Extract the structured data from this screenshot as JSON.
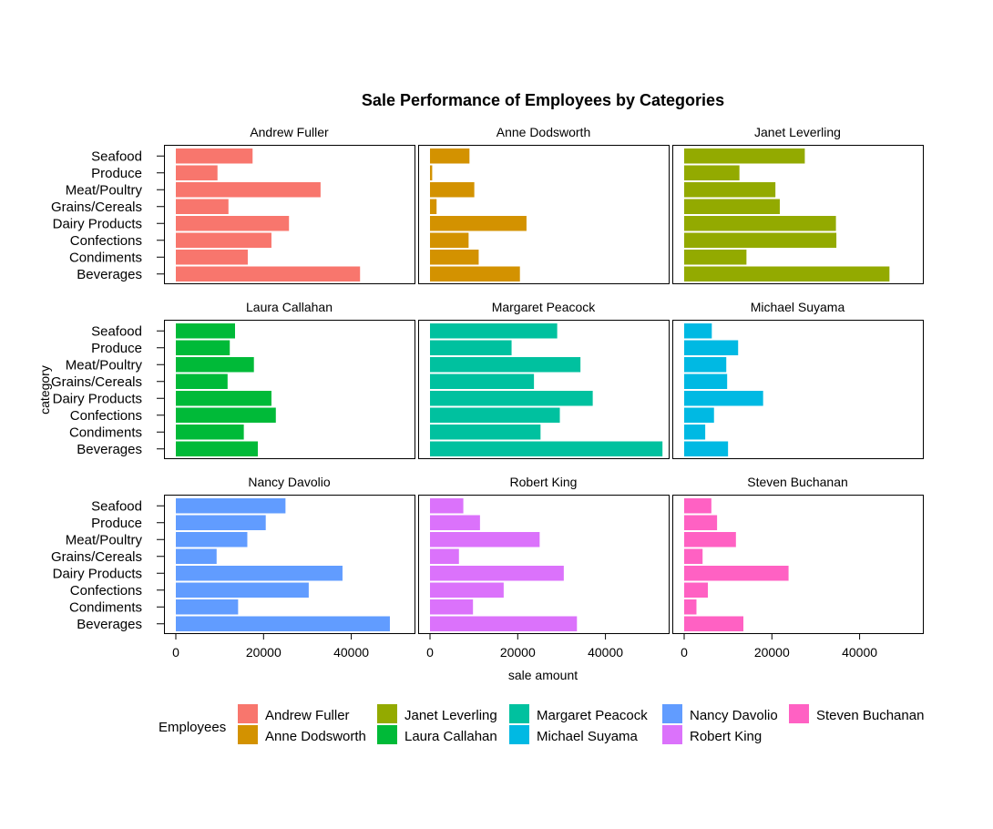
{
  "chart_data": {
    "type": "bar",
    "orientation": "horizontal",
    "layout": "faceted 3x3",
    "title": "Sale Performance of Employees by Categories",
    "xlabel": "sale amount",
    "ylabel": "category",
    "xlim": [
      0,
      54000
    ],
    "x_ticks": [
      0,
      20000,
      40000
    ],
    "x_tick_labels": [
      "0",
      "20000",
      "40000"
    ],
    "categories": [
      "Seafood",
      "Produce",
      "Meat/Poultry",
      "Grains/Cereals",
      "Dairy Products",
      "Confections",
      "Condiments",
      "Beverages"
    ],
    "grid": false,
    "legend": {
      "title": "Employees",
      "position": "bottom",
      "entries": [
        "Andrew Fuller",
        "Anne Dodsworth",
        "Janet Leverling",
        "Laura Callahan",
        "Margaret Peacock",
        "Michael Suyama",
        "Nancy Davolio",
        "Robert King",
        "Steven Buchanan"
      ]
    },
    "series": [
      {
        "name": "Andrew Fuller",
        "color": "#F8766D",
        "values": [
          17500,
          9500,
          33000,
          12000,
          25800,
          21800,
          16400,
          42000
        ]
      },
      {
        "name": "Anne Dodsworth",
        "color": "#D39200",
        "values": [
          9000,
          500,
          10100,
          1500,
          22000,
          8800,
          11100,
          20500
        ]
      },
      {
        "name": "Janet Leverling",
        "color": "#93AA00",
        "values": [
          27500,
          12600,
          20800,
          21800,
          34600,
          34700,
          14200,
          46800
        ]
      },
      {
        "name": "Laura Callahan",
        "color": "#00BA38",
        "values": [
          13500,
          12300,
          17800,
          11800,
          21800,
          22800,
          15500,
          18700
        ]
      },
      {
        "name": "Margaret Peacock",
        "color": "#00C19F",
        "values": [
          29000,
          18600,
          34300,
          23700,
          37100,
          29600,
          25200,
          53000
        ]
      },
      {
        "name": "Michael Suyama",
        "color": "#00B9E3",
        "values": [
          6300,
          12300,
          9600,
          9800,
          18000,
          6800,
          4800,
          10000
        ]
      },
      {
        "name": "Nancy Davolio",
        "color": "#619CFF",
        "values": [
          25000,
          20500,
          16300,
          9300,
          38000,
          30300,
          14200,
          48800
        ]
      },
      {
        "name": "Robert King",
        "color": "#DB72FB",
        "values": [
          7600,
          11400,
          25000,
          6600,
          30500,
          16800,
          9800,
          33500
        ]
      },
      {
        "name": "Steven Buchanan",
        "color": "#FF61C3",
        "values": [
          6200,
          7500,
          11800,
          4200,
          23800,
          5400,
          2800,
          13500
        ]
      }
    ]
  }
}
